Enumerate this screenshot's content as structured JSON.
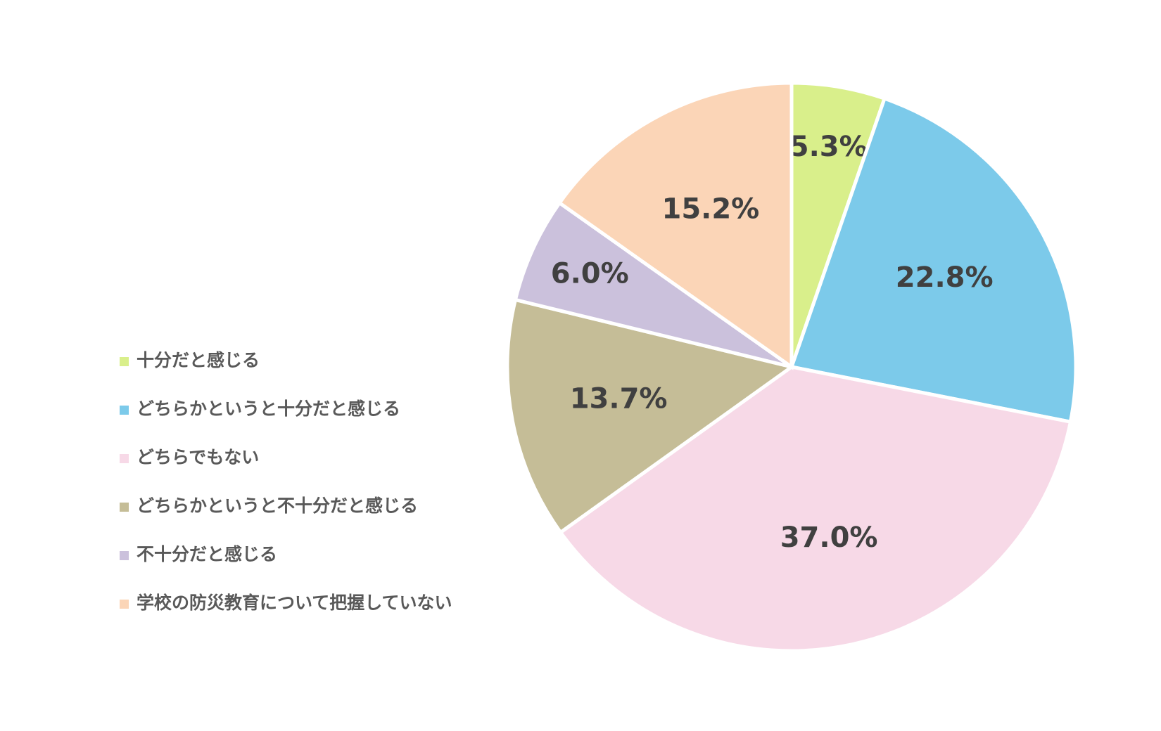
{
  "chart_data": {
    "type": "pie",
    "categories": [
      "十分だと感じる",
      "どちらかというと十分だと感じる",
      "どちらでもない",
      "どちらかというと不十分だと感じる",
      "不十分だと感じる",
      "学校の防災教育について把握していない"
    ],
    "values": [
      5.3,
      22.8,
      37.0,
      13.7,
      6.0,
      15.2
    ],
    "value_labels": [
      "5.3%",
      "22.8%",
      "37.0%",
      "13.7%",
      "6.0%",
      "15.2%"
    ],
    "colors": [
      "#d9ef8b",
      "#7ccaea",
      "#f7d9e7",
      "#c5bd97",
      "#cbc1dc",
      "#fbd5b7"
    ],
    "legend": "left"
  }
}
